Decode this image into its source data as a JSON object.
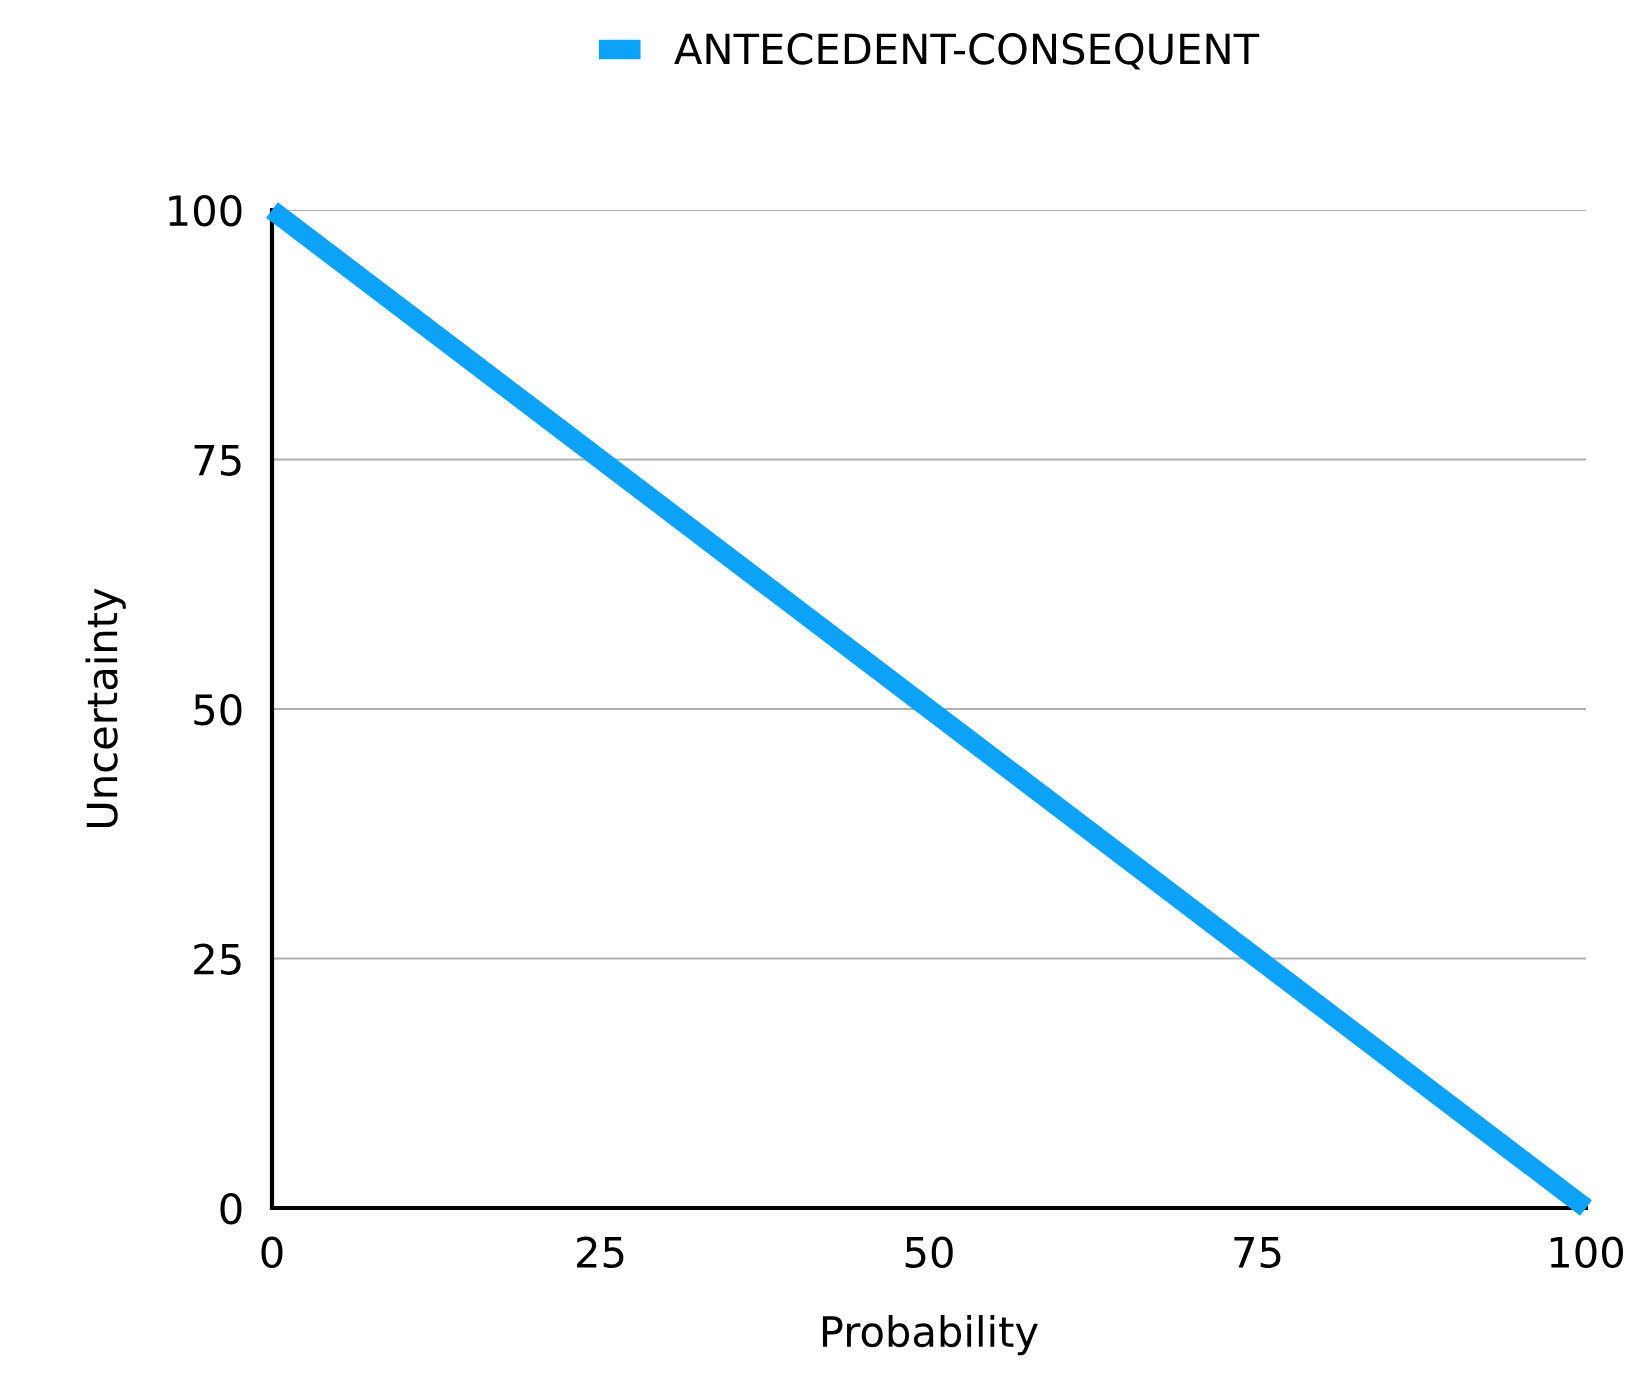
{
  "chart_data": {
    "type": "line",
    "xlabel": "Probability",
    "ylabel": "Uncertainty",
    "x": [
      0,
      100
    ],
    "series": [
      {
        "name": "ANTECEDENT-CONSEQUENT",
        "color": "#0ba2f7",
        "values": [
          100,
          0
        ]
      }
    ],
    "xlim": [
      0,
      100
    ],
    "ylim": [
      0,
      100
    ],
    "xticks": [
      0,
      25,
      50,
      75,
      100
    ],
    "yticks": [
      0,
      25,
      50,
      75,
      100
    ],
    "grid": "y",
    "legend": "top",
    "marker": "none",
    "line_style": "solid"
  }
}
